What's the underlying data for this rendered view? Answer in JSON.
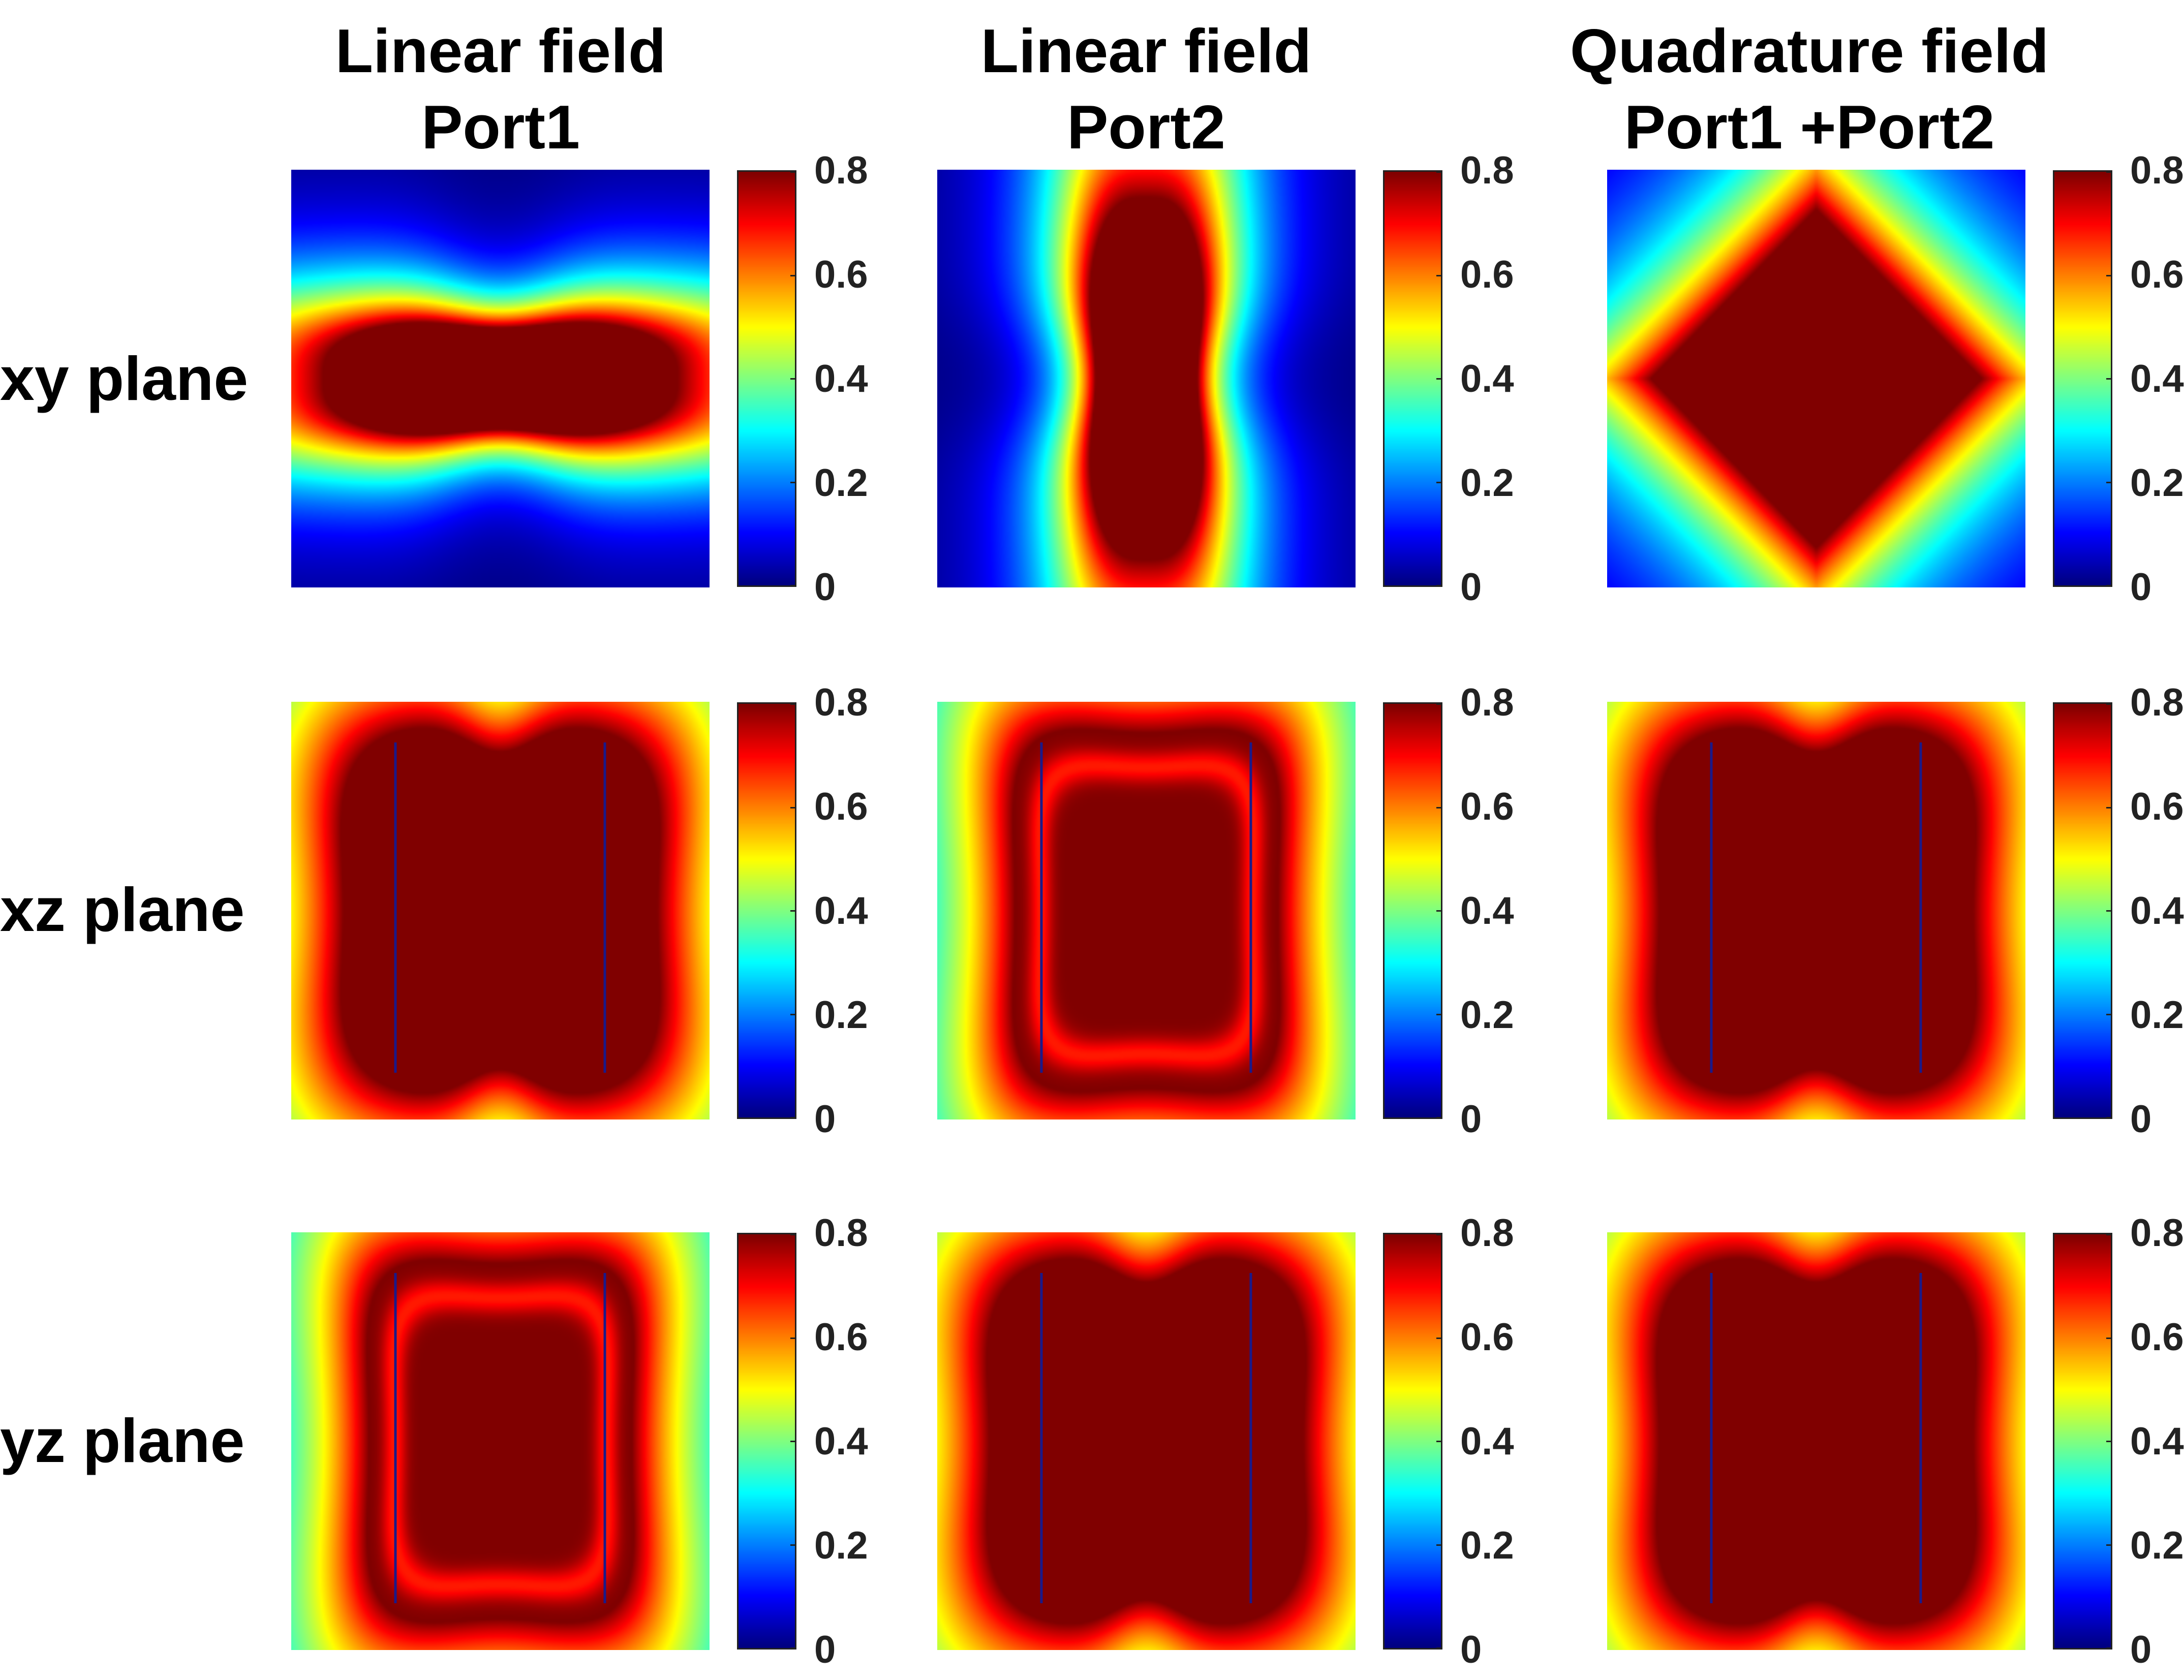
{
  "chart_data": {
    "type": "heatmap",
    "colormap": "jet",
    "clim": [
      0,
      0.8
    ],
    "colorbar_ticks": [
      "0",
      "0.2",
      "0.4",
      "0.6",
      "0.8"
    ],
    "columns": [
      {
        "title_line1": "Linear field",
        "title_line2": "Port1"
      },
      {
        "title_line1": "Linear field",
        "title_line2": "Port2"
      },
      {
        "title_line1": "Quadrature field",
        "title_line2": "Port1 +Port2"
      }
    ],
    "rows": [
      {
        "label": "xy plane"
      },
      {
        "label": "xz plane"
      },
      {
        "label": "yz plane"
      }
    ],
    "panels": [
      {
        "row": 0,
        "col": 0,
        "pattern": "horizontal-lobed",
        "max_saturated": 0.8
      },
      {
        "row": 0,
        "col": 1,
        "pattern": "vertical-lobed",
        "max_saturated": 0.8
      },
      {
        "row": 0,
        "col": 2,
        "pattern": "diamond",
        "max_saturated": 0.8
      },
      {
        "row": 1,
        "col": 0,
        "pattern": "dogbone",
        "max_saturated": 0.8
      },
      {
        "row": 1,
        "col": 1,
        "pattern": "frame",
        "max_saturated": 0.8
      },
      {
        "row": 1,
        "col": 2,
        "pattern": "dogbone",
        "max_saturated": 0.8
      },
      {
        "row": 2,
        "col": 0,
        "pattern": "frame-mirrored",
        "max_saturated": 0.8
      },
      {
        "row": 2,
        "col": 1,
        "pattern": "dogbone",
        "max_saturated": 0.8
      },
      {
        "row": 2,
        "col": 2,
        "pattern": "dogbone",
        "max_saturated": 0.8
      }
    ]
  }
}
